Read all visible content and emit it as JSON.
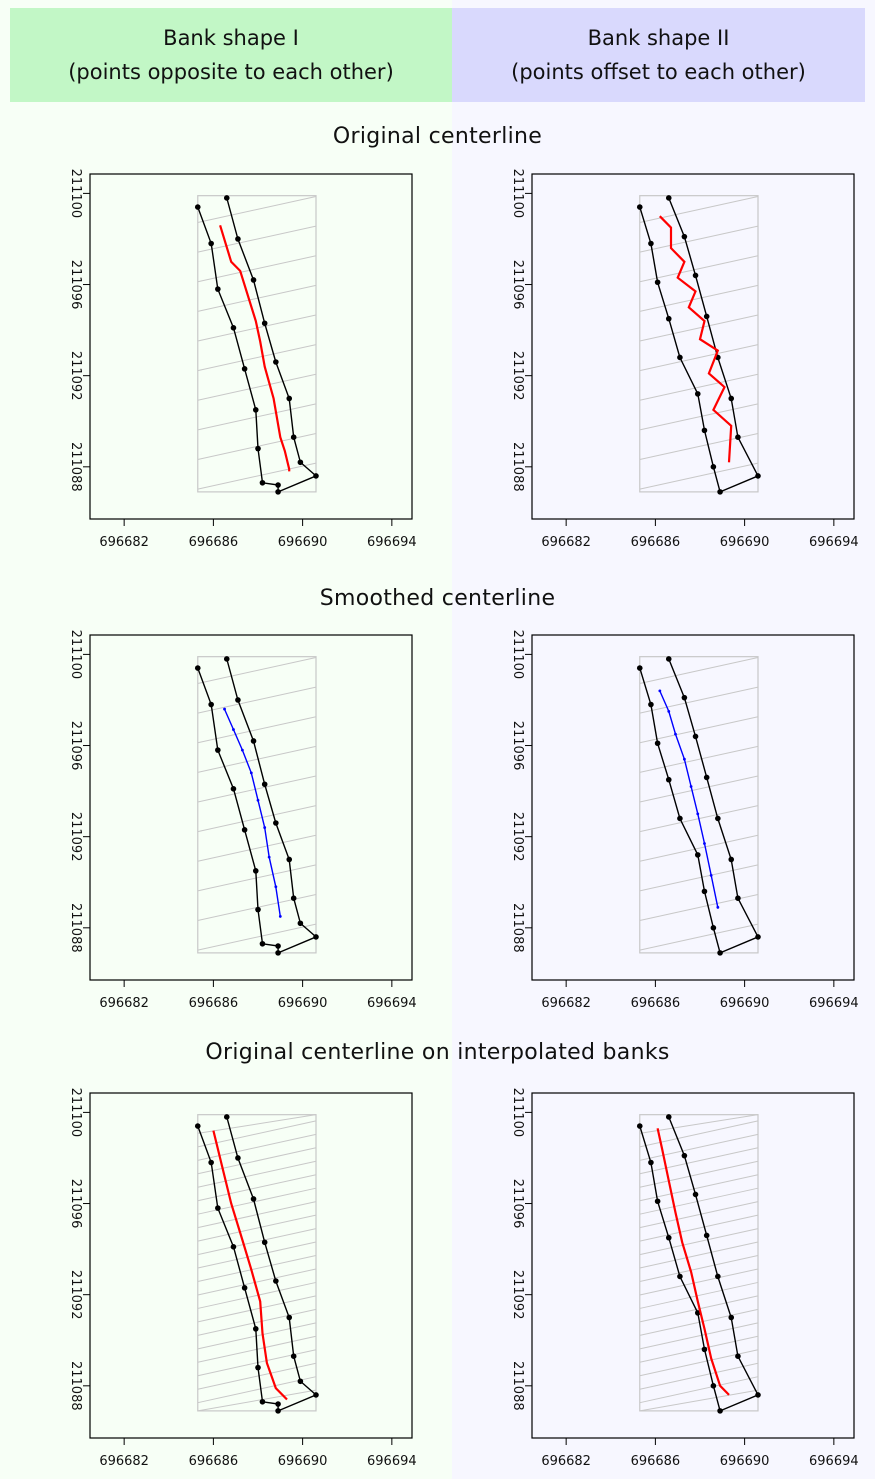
{
  "headers": {
    "left": {
      "line1": "Bank shape I",
      "line2": "(points opposite to each other)",
      "color": "#c2f7c6"
    },
    "right": {
      "line1": "Bank shape II",
      "line2": "(points offset to each other)",
      "color": "#d9d9fd"
    }
  },
  "backgrounds": {
    "left": "#f7fff6",
    "right": "#f7f7ff"
  },
  "row_titles": [
    "Original centerline",
    "Smoothed centerline",
    "Original centerline on interpolated banks"
  ],
  "axis": {
    "x_ticks": [
      696682,
      696686,
      696690,
      696694
    ],
    "y_ticks": [
      211088,
      211092,
      211096,
      211100
    ],
    "xlim": [
      696681.5,
      696694.5
    ],
    "ylim": [
      211086.5,
      211100.5
    ]
  },
  "colors": {
    "bank": "#000000",
    "centerline_original": "#ff0000",
    "centerline_smoothed": "#0000ff",
    "voronoi": "#c8c8c8",
    "frame": "#000000"
  },
  "chart_data": [
    {
      "type": "line",
      "row": "Original centerline",
      "column": "Bank shape I",
      "series": [
        {
          "x": [
            696685.3,
            696685.9,
            696686.2,
            696686.9,
            696687.4,
            696687.9,
            696688.0,
            696688.2,
            696688.9,
            696688.9
          ],
          "y": [
            211099.4,
            211097.8,
            211095.8,
            211094.1,
            211092.3,
            211090.5,
            211088.8,
            211087.3,
            211087.2,
            211086.9
          ]
        },
        {
          "x": [
            696686.6,
            696687.1,
            696687.8,
            696688.3,
            696688.8,
            696689.4,
            696689.6,
            696689.9,
            696690.6
          ],
          "y": [
            211099.8,
            211098.0,
            211096.2,
            211094.3,
            211092.6,
            211091.0,
            211089.3,
            211088.2,
            211087.6
          ]
        },
        {
          "x": [
            696686.3,
            696686.8,
            696687.2,
            696687.9,
            696688.1,
            696688.3,
            696688.7,
            696689.0,
            696689.2,
            696689.4,
            696689.4
          ],
          "y": [
            211098.6,
            211097.0,
            211096.6,
            211094.4,
            211093.5,
            211092.4,
            211091.0,
            211089.3,
            211088.7,
            211087.9,
            211087.8
          ]
        }
      ]
    },
    {
      "type": "line",
      "row": "Original centerline",
      "column": "Bank shape II",
      "series": [
        {
          "x": [
            696685.3,
            696685.8,
            696686.1,
            696686.6,
            696687.1,
            696687.9,
            696688.2,
            696688.6,
            696688.9
          ],
          "y": [
            211099.4,
            211097.8,
            211096.1,
            211094.5,
            211092.8,
            211091.2,
            211089.6,
            211088.0,
            211086.9
          ]
        },
        {
          "x": [
            696686.6,
            696687.3,
            696687.8,
            696688.3,
            696688.8,
            696689.4,
            696689.7,
            696690.6
          ],
          "y": [
            211099.8,
            211098.1,
            211096.4,
            211094.6,
            211092.8,
            211091.0,
            211089.3,
            211087.6
          ]
        },
        {
          "x": [
            696686.2,
            696686.7,
            696686.7,
            696687.3,
            696687.0,
            696687.8,
            696687.5,
            696688.2,
            696688.0,
            696688.8,
            696688.4,
            696689.1,
            696688.6,
            696689.4,
            696689.3
          ],
          "y": [
            211099.0,
            211098.5,
            211097.6,
            211097.0,
            211096.3,
            211095.7,
            211095.0,
            211094.4,
            211093.6,
            211093.1,
            211092.1,
            211091.5,
            211090.5,
            211089.8,
            211088.2
          ]
        }
      ]
    },
    {
      "type": "line",
      "row": "Smoothed centerline",
      "column": "Bank shape I",
      "series": [
        {
          "x": [
            696685.3,
            696685.9,
            696686.2,
            696686.9,
            696687.4,
            696687.9,
            696688.0,
            696688.2,
            696688.9,
            696688.9
          ],
          "y": [
            211099.4,
            211097.8,
            211095.8,
            211094.1,
            211092.3,
            211090.5,
            211088.8,
            211087.3,
            211087.2,
            211086.9
          ]
        },
        {
          "x": [
            696686.6,
            696687.1,
            696687.8,
            696688.3,
            696688.8,
            696689.4,
            696689.6,
            696689.9,
            696690.6
          ],
          "y": [
            211099.8,
            211098.0,
            211096.2,
            211094.3,
            211092.6,
            211091.0,
            211089.3,
            211088.2,
            211087.6
          ]
        },
        {
          "x": [
            696686.5,
            696686.9,
            696687.3,
            696687.7,
            696688.0,
            696688.3,
            696688.5,
            696688.8,
            696689.0
          ],
          "y": [
            211097.6,
            211096.7,
            211095.8,
            211094.8,
            211093.6,
            211092.4,
            211091.1,
            211089.8,
            211088.5
          ]
        }
      ]
    },
    {
      "type": "line",
      "row": "Smoothed centerline",
      "column": "Bank shape II",
      "series": [
        {
          "x": [
            696685.3,
            696685.8,
            696686.1,
            696686.6,
            696687.1,
            696687.9,
            696688.2,
            696688.6,
            696688.9
          ],
          "y": [
            211099.4,
            211097.8,
            211096.1,
            211094.5,
            211092.8,
            211091.2,
            211089.6,
            211088.0,
            211086.9
          ]
        },
        {
          "x": [
            696686.6,
            696687.3,
            696687.8,
            696688.3,
            696688.8,
            696689.4,
            696689.7,
            696690.6
          ],
          "y": [
            211099.8,
            211098.1,
            211096.4,
            211094.6,
            211092.8,
            211091.0,
            211089.3,
            211087.6
          ]
        },
        {
          "x": [
            696686.2,
            696686.6,
            696686.9,
            696687.3,
            696687.6,
            696687.9,
            696688.2,
            696688.5,
            696688.8
          ],
          "y": [
            211098.4,
            211097.5,
            211096.5,
            211095.4,
            211094.2,
            211093.0,
            211091.7,
            211090.3,
            211088.9
          ]
        }
      ]
    },
    {
      "type": "line",
      "row": "Original centerline on interpolated banks",
      "column": "Bank shape I",
      "series": [
        {
          "x": [
            696685.3,
            696685.9,
            696686.2,
            696686.9,
            696687.4,
            696687.9,
            696688.0,
            696688.2,
            696688.9,
            696688.9
          ],
          "y": [
            211099.4,
            211097.8,
            211095.8,
            211094.1,
            211092.3,
            211090.5,
            211088.8,
            211087.3,
            211087.2,
            211086.9
          ]
        },
        {
          "x": [
            696686.6,
            696687.1,
            696687.8,
            696688.3,
            696688.8,
            696689.4,
            696689.6,
            696689.9,
            696690.6
          ],
          "y": [
            211099.8,
            211098.0,
            211096.2,
            211094.3,
            211092.6,
            211091.0,
            211089.3,
            211088.2,
            211087.6
          ]
        },
        {
          "x": [
            696686.0,
            696686.4,
            696686.8,
            696687.3,
            696687.7,
            696688.1,
            696688.2,
            696688.4,
            696688.8,
            696689.3
          ],
          "y": [
            211099.2,
            211097.6,
            211096.0,
            211094.4,
            211093.1,
            211091.7,
            211090.3,
            211089.0,
            211087.9,
            211087.4
          ]
        }
      ]
    },
    {
      "type": "line",
      "row": "Original centerline on interpolated banks",
      "column": "Bank shape II",
      "series": [
        {
          "x": [
            696685.3,
            696685.8,
            696686.1,
            696686.6,
            696687.1,
            696687.9,
            696688.2,
            696688.6,
            696688.9
          ],
          "y": [
            211099.4,
            211097.8,
            211096.1,
            211094.5,
            211092.8,
            211091.2,
            211089.6,
            211088.0,
            211086.9
          ]
        },
        {
          "x": [
            696686.6,
            696687.3,
            696687.8,
            696688.3,
            696688.8,
            696689.4,
            696689.7,
            696690.6
          ],
          "y": [
            211099.8,
            211098.1,
            211096.4,
            211094.6,
            211092.8,
            211091.0,
            211089.3,
            211087.6
          ]
        },
        {
          "x": [
            696686.1,
            696686.3,
            696686.6,
            696686.9,
            696687.2,
            696687.6,
            696687.9,
            696688.2,
            696688.5,
            696688.9,
            696689.3
          ],
          "y": [
            211099.3,
            211098.4,
            211097.0,
            211095.6,
            211094.3,
            211093.0,
            211091.7,
            211090.5,
            211089.2,
            211088.0,
            211087.6
          ]
        }
      ]
    }
  ]
}
